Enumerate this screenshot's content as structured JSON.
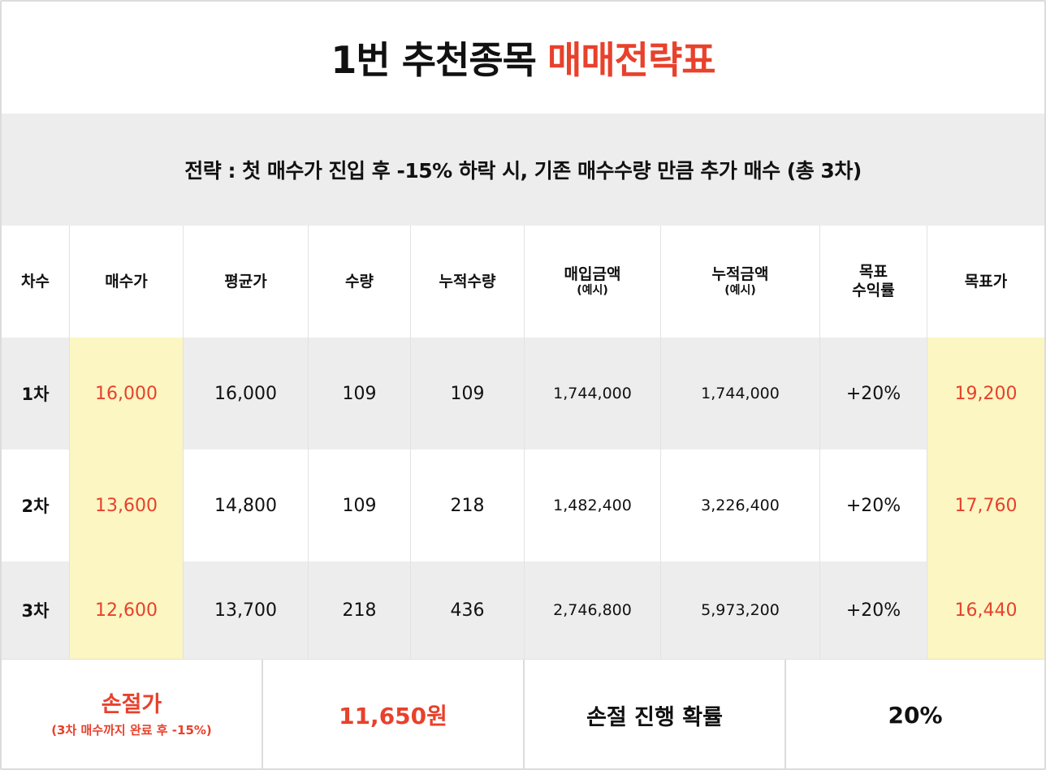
{
  "title": {
    "main": "1번 추천종목",
    "accent": "매매전략표"
  },
  "strategy": "전략 : 첫 매수가 진입 후 -15% 하락 시, 기존 매수수량 만큼 추가 매수 (총 3차)",
  "colors": {
    "accent": "#e8412c",
    "highlight": "#fbf6c2",
    "row_gray": "#ededed"
  },
  "headers": {
    "round": "차수",
    "buy_price": "매수가",
    "avg_price": "평균가",
    "qty": "수량",
    "cum_qty": "누적수량",
    "buy_amount": "매입금액",
    "buy_amount_sub": "(예시)",
    "cum_amount": "누적금액",
    "cum_amount_sub": "(예시)",
    "target_return_1": "목표",
    "target_return_2": "수익률",
    "target_price": "목표가"
  },
  "rows": [
    {
      "round": "1차",
      "buy_price": "16,000",
      "avg_price": "16,000",
      "qty": "109",
      "cum_qty": "109",
      "buy_amount": "1,744,000",
      "cum_amount": "1,744,000",
      "target_return": "+20%",
      "target_price": "19,200"
    },
    {
      "round": "2차",
      "buy_price": "13,600",
      "avg_price": "14,800",
      "qty": "109",
      "cum_qty": "218",
      "buy_amount": "1,482,400",
      "cum_amount": "3,226,400",
      "target_return": "+20%",
      "target_price": "17,760"
    },
    {
      "round": "3차",
      "buy_price": "12,600",
      "avg_price": "13,700",
      "qty": "218",
      "cum_qty": "436",
      "buy_amount": "2,746,800",
      "cum_amount": "5,973,200",
      "target_return": "+20%",
      "target_price": "16,440"
    }
  ],
  "footer": {
    "stop_loss_label": "손절가",
    "stop_loss_sub": "(3차 매수까지 완료 후 -15%)",
    "stop_loss_value": "11,650원",
    "stop_prob_label": "손절 진행 확률",
    "stop_prob_value": "20%"
  }
}
